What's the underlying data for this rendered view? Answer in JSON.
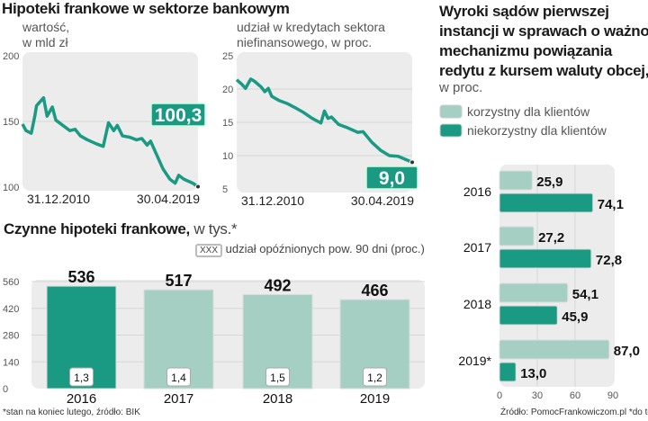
{
  "colors": {
    "dark": "#1a9a82",
    "light": "#a6cfc4",
    "panel": "#ececec",
    "grid": "#d6d6d6"
  },
  "header": {
    "title": "Hipoteki frankowe w sektorze bankowym"
  },
  "chart_data": [
    {
      "type": "line",
      "subtitle": "wartość,\nw mld zł",
      "ylim": [
        100,
        200
      ],
      "yticks": [
        100,
        150,
        200
      ],
      "xtick_labels": [
        "31.12.2010",
        "30.04.2019"
      ],
      "last_value_label": "100,3",
      "grid": true,
      "x": [
        "2010-12",
        "2011-02",
        "2011-05",
        "2011-07",
        "2011-08",
        "2011-12",
        "2012-02",
        "2012-05",
        "2012-07",
        "2012-10",
        "2013-03",
        "2013-06",
        "2013-09",
        "2014-01",
        "2014-06",
        "2014-10",
        "2015-01",
        "2015-04",
        "2015-06",
        "2015-09",
        "2016-01",
        "2016-05",
        "2016-08",
        "2016-11",
        "2017-01",
        "2017-05",
        "2017-08",
        "2017-12",
        "2018-03",
        "2018-05",
        "2018-08",
        "2019-01",
        "2019-04"
      ],
      "y": [
        148,
        143,
        141,
        154,
        162,
        168,
        154,
        161,
        151,
        148,
        143,
        144,
        139,
        136,
        133,
        131,
        149,
        143,
        147,
        139,
        138,
        136,
        137,
        132,
        135,
        123,
        114,
        106,
        103,
        109,
        106,
        103,
        100.3
      ]
    },
    {
      "type": "line",
      "subtitle": "udział w kredytach sektora\nniefinansowego, w proc.",
      "ylim": [
        5,
        25
      ],
      "yticks": [
        5,
        10,
        15,
        20,
        25
      ],
      "xtick_labels": [
        "31.12.2010",
        "30.04.2019"
      ],
      "last_value_label": "9,0",
      "grid": true,
      "x": [
        "2010-12",
        "2011-03",
        "2011-05",
        "2011-08",
        "2011-10",
        "2012-02",
        "2012-04",
        "2012-06",
        "2012-08",
        "2012-12",
        "2013-05",
        "2013-10",
        "2014-02",
        "2014-07",
        "2014-12",
        "2015-02",
        "2015-04",
        "2015-06",
        "2015-10",
        "2016-03",
        "2016-09",
        "2016-12",
        "2017-05",
        "2017-10",
        "2018-03",
        "2018-08",
        "2019-04"
      ],
      "y": [
        21.4,
        20.7,
        20.1,
        21.5,
        21.2,
        20.3,
        19.6,
        20.1,
        18.9,
        18.3,
        17.8,
        17.1,
        16.5,
        15.6,
        14.9,
        16.7,
        15.6,
        15.8,
        14.7,
        14.2,
        13.5,
        13.6,
        12.0,
        10.8,
        10.0,
        9.9,
        9.0
      ]
    },
    {
      "type": "bar",
      "title": "Czynne hipoteki frankowe,",
      "title_unit": "w tys.*",
      "legend": {
        "box": "XXX",
        "label": "udział opóźnionych pow. 90 dni (proc.)"
      },
      "ylim": [
        0,
        560
      ],
      "yticks": [
        0,
        140,
        280,
        420,
        560
      ],
      "categories": [
        "2016",
        "2017",
        "2018",
        "2019"
      ],
      "values": [
        536,
        517,
        492,
        466
      ],
      "value_labels": [
        "536",
        "517",
        "492",
        "466"
      ],
      "inner_labels": [
        "1,3",
        "1,4",
        "1,5",
        "1,2"
      ],
      "footnote": "*stan na koniec lutego, źródło: BIK"
    },
    {
      "type": "bar",
      "orientation": "horizontal",
      "title": "Wyroki sądów pierwszej\ninstancji w sprawach o ważność\nmechanizmu powiązania\nredytu z kursem waluty obcej,",
      "title_unit": "w proc.",
      "xlim": [
        0,
        90
      ],
      "xticks": [
        0,
        30,
        60,
        90
      ],
      "categories": [
        "2016",
        "2017",
        "2018",
        "2019*"
      ],
      "series": [
        {
          "name": "korzystny dla klientów",
          "values": [
            25.9,
            27.2,
            54.1,
            87.0
          ],
          "labels": [
            "25,9",
            "27,2",
            "54,1",
            "87,0"
          ]
        },
        {
          "name": "niekorzystny dla klientów",
          "values": [
            74.1,
            72.8,
            45.9,
            13.0
          ],
          "labels": [
            "74,1",
            "72,8",
            "45,9",
            "13,0"
          ]
        }
      ],
      "legend_position": "top-left",
      "footnote": "Źródło: PomocFrankowiczom.pl *do tej pory"
    }
  ]
}
